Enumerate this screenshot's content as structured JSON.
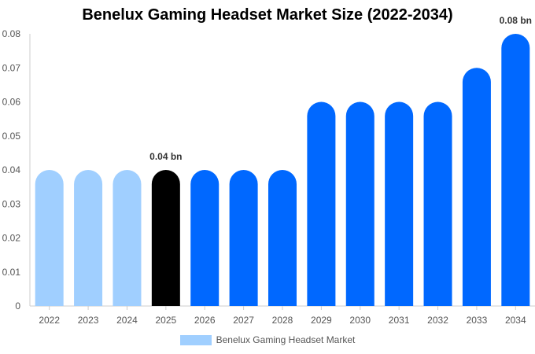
{
  "chart_data": {
    "type": "bar",
    "title": "Benelux Gaming Headset Market Size (2022-2034)",
    "categories": [
      "2022",
      "2023",
      "2024",
      "2025",
      "2026",
      "2027",
      "2028",
      "2029",
      "2030",
      "2031",
      "2032",
      "2033",
      "2034"
    ],
    "series": [
      {
        "name": "Benelux Gaming Headset Market",
        "values": [
          0.04,
          0.04,
          0.04,
          0.04,
          0.04,
          0.04,
          0.04,
          0.06,
          0.06,
          0.06,
          0.06,
          0.07,
          0.08
        ]
      }
    ],
    "ylim": [
      0,
      0.08
    ],
    "yticks": [
      "0",
      "0.01",
      "0.02",
      "0.03",
      "0.04",
      "0.05",
      "0.06",
      "0.07",
      "0.08"
    ],
    "yticks_values": [
      0,
      0.01,
      0.02,
      0.03,
      0.04,
      0.05,
      0.06,
      0.07,
      0.08
    ],
    "data_labels": [
      {
        "category": "2025",
        "text": "0.04 bn"
      },
      {
        "category": "2034",
        "text": "0.08 bn"
      }
    ],
    "bar_colors": [
      "#a0cfff",
      "#a0cfff",
      "#a0cfff",
      "#000000",
      "#0068ff",
      "#0068ff",
      "#0068ff",
      "#0068ff",
      "#0068ff",
      "#0068ff",
      "#0068ff",
      "#0068ff",
      "#0068ff"
    ],
    "legend_color": "#a0cfff",
    "legend_position": "bottom-center",
    "grid": false
  }
}
